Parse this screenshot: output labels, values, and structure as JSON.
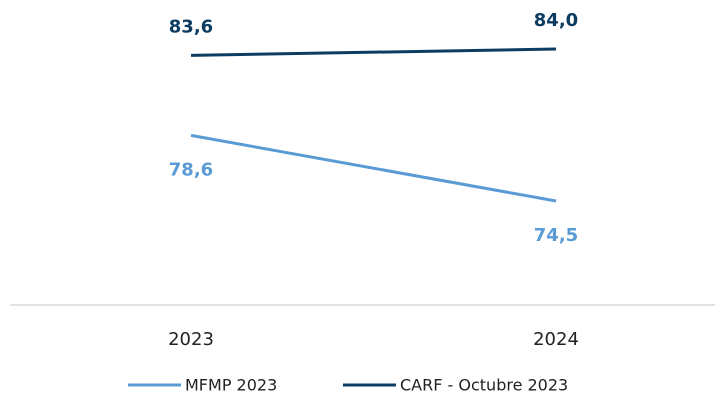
{
  "chart_data": {
    "type": "line",
    "categories": [
      "2023",
      "2024"
    ],
    "ylim": [
      68,
      87
    ],
    "series": [
      {
        "name": "MFMP 2023",
        "color": "#5b9bd5",
        "values": [
          78.6,
          74.5
        ],
        "value_labels": [
          "78,6",
          "74,5"
        ]
      },
      {
        "name": "CARF - Octubre 2023",
        "color": "#0d3c61",
        "values": [
          83.6,
          84.0
        ],
        "value_labels": [
          "83,6",
          "84,0"
        ]
      }
    ]
  }
}
